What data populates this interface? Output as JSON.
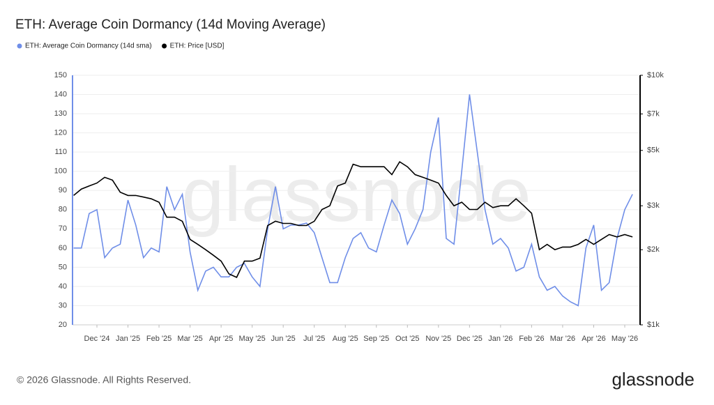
{
  "chart_data": {
    "type": "line",
    "title": "ETH: Average Coin Dormancy (14d Moving Average)",
    "categories": [
      null,
      null,
      null,
      "Dec '24",
      null,
      null,
      null,
      "Jan '25",
      null,
      null,
      null,
      "Feb '25",
      null,
      null,
      null,
      "Mar '25",
      null,
      null,
      null,
      "Apr '25",
      null,
      null,
      null,
      "May '25",
      null,
      null,
      null,
      "Jun '25",
      null,
      null,
      null,
      "Jul '25",
      null,
      null,
      null,
      "Aug '25",
      null,
      null,
      null,
      "Sep '25",
      null,
      null,
      null,
      "Oct '25",
      null,
      null,
      null,
      "Nov '25",
      null,
      null,
      null,
      "Dec '25",
      null,
      null,
      null,
      "Jan '26",
      null,
      null,
      null,
      "Feb '26",
      null,
      null,
      null,
      "Mar '26",
      null,
      null,
      null,
      "Apr '26",
      null,
      null,
      null,
      "May '26",
      null
    ],
    "series": [
      {
        "name": "ETH: Average Coin Dormancy (14d sma)",
        "color": "#6f8ee8",
        "values": [
          60,
          60,
          78,
          80,
          55,
          60,
          62,
          85,
          72,
          55,
          60,
          58,
          92,
          80,
          88,
          58,
          38,
          48,
          50,
          45,
          45,
          50,
          52,
          45,
          40,
          70,
          92,
          70,
          72,
          72,
          73,
          68,
          55,
          42,
          42,
          55,
          65,
          68,
          60,
          58,
          72,
          85,
          78,
          62,
          70,
          80,
          110,
          128,
          65,
          62,
          100,
          140,
          110,
          80,
          62,
          65,
          60,
          48,
          50,
          62,
          45,
          38,
          40,
          35,
          32,
          30,
          60,
          72,
          38,
          42,
          65,
          80,
          88
        ]
      },
      {
        "name": "ETH: Price [USD]",
        "color": "#000000",
        "axis": "y2",
        "values": [
          3300,
          3500,
          3600,
          3700,
          3900,
          3800,
          3400,
          3300,
          3300,
          3250,
          3200,
          3100,
          2700,
          2700,
          2600,
          2200,
          2100,
          2000,
          1900,
          1800,
          1600,
          1550,
          1800,
          1800,
          1850,
          2500,
          2600,
          2550,
          2550,
          2500,
          2500,
          2600,
          2900,
          3000,
          3600,
          3700,
          4400,
          4300,
          4300,
          4300,
          4300,
          4000,
          4500,
          4300,
          4000,
          3900,
          3800,
          3700,
          3300,
          3000,
          3100,
          2900,
          2900,
          3100,
          2950,
          3000,
          3000,
          3200,
          3000,
          2800,
          2000,
          2100,
          2000,
          2050,
          2050,
          2100,
          2200,
          2100,
          2200,
          2300,
          2250,
          2300,
          2250
        ]
      }
    ],
    "ylim": [
      20,
      150
    ],
    "yticks": [
      20,
      30,
      40,
      50,
      60,
      70,
      80,
      90,
      100,
      110,
      120,
      130,
      140,
      150
    ],
    "y2lim": [
      1000,
      10000
    ],
    "y2_scale": "log",
    "y2ticks": [
      {
        "value": 1000,
        "label": "$1k"
      },
      {
        "value": 2000,
        "label": "$2k"
      },
      {
        "value": 3000,
        "label": "$3k"
      },
      {
        "value": 5000,
        "label": "$5k"
      },
      {
        "value": 7000,
        "label": "$7k"
      },
      {
        "value": 10000,
        "label": "$10k"
      }
    ],
    "grid": true,
    "watermark": "glassnode",
    "footer": "© 2026 Glassnode. All Rights Reserved.",
    "brand": "glassnode"
  }
}
